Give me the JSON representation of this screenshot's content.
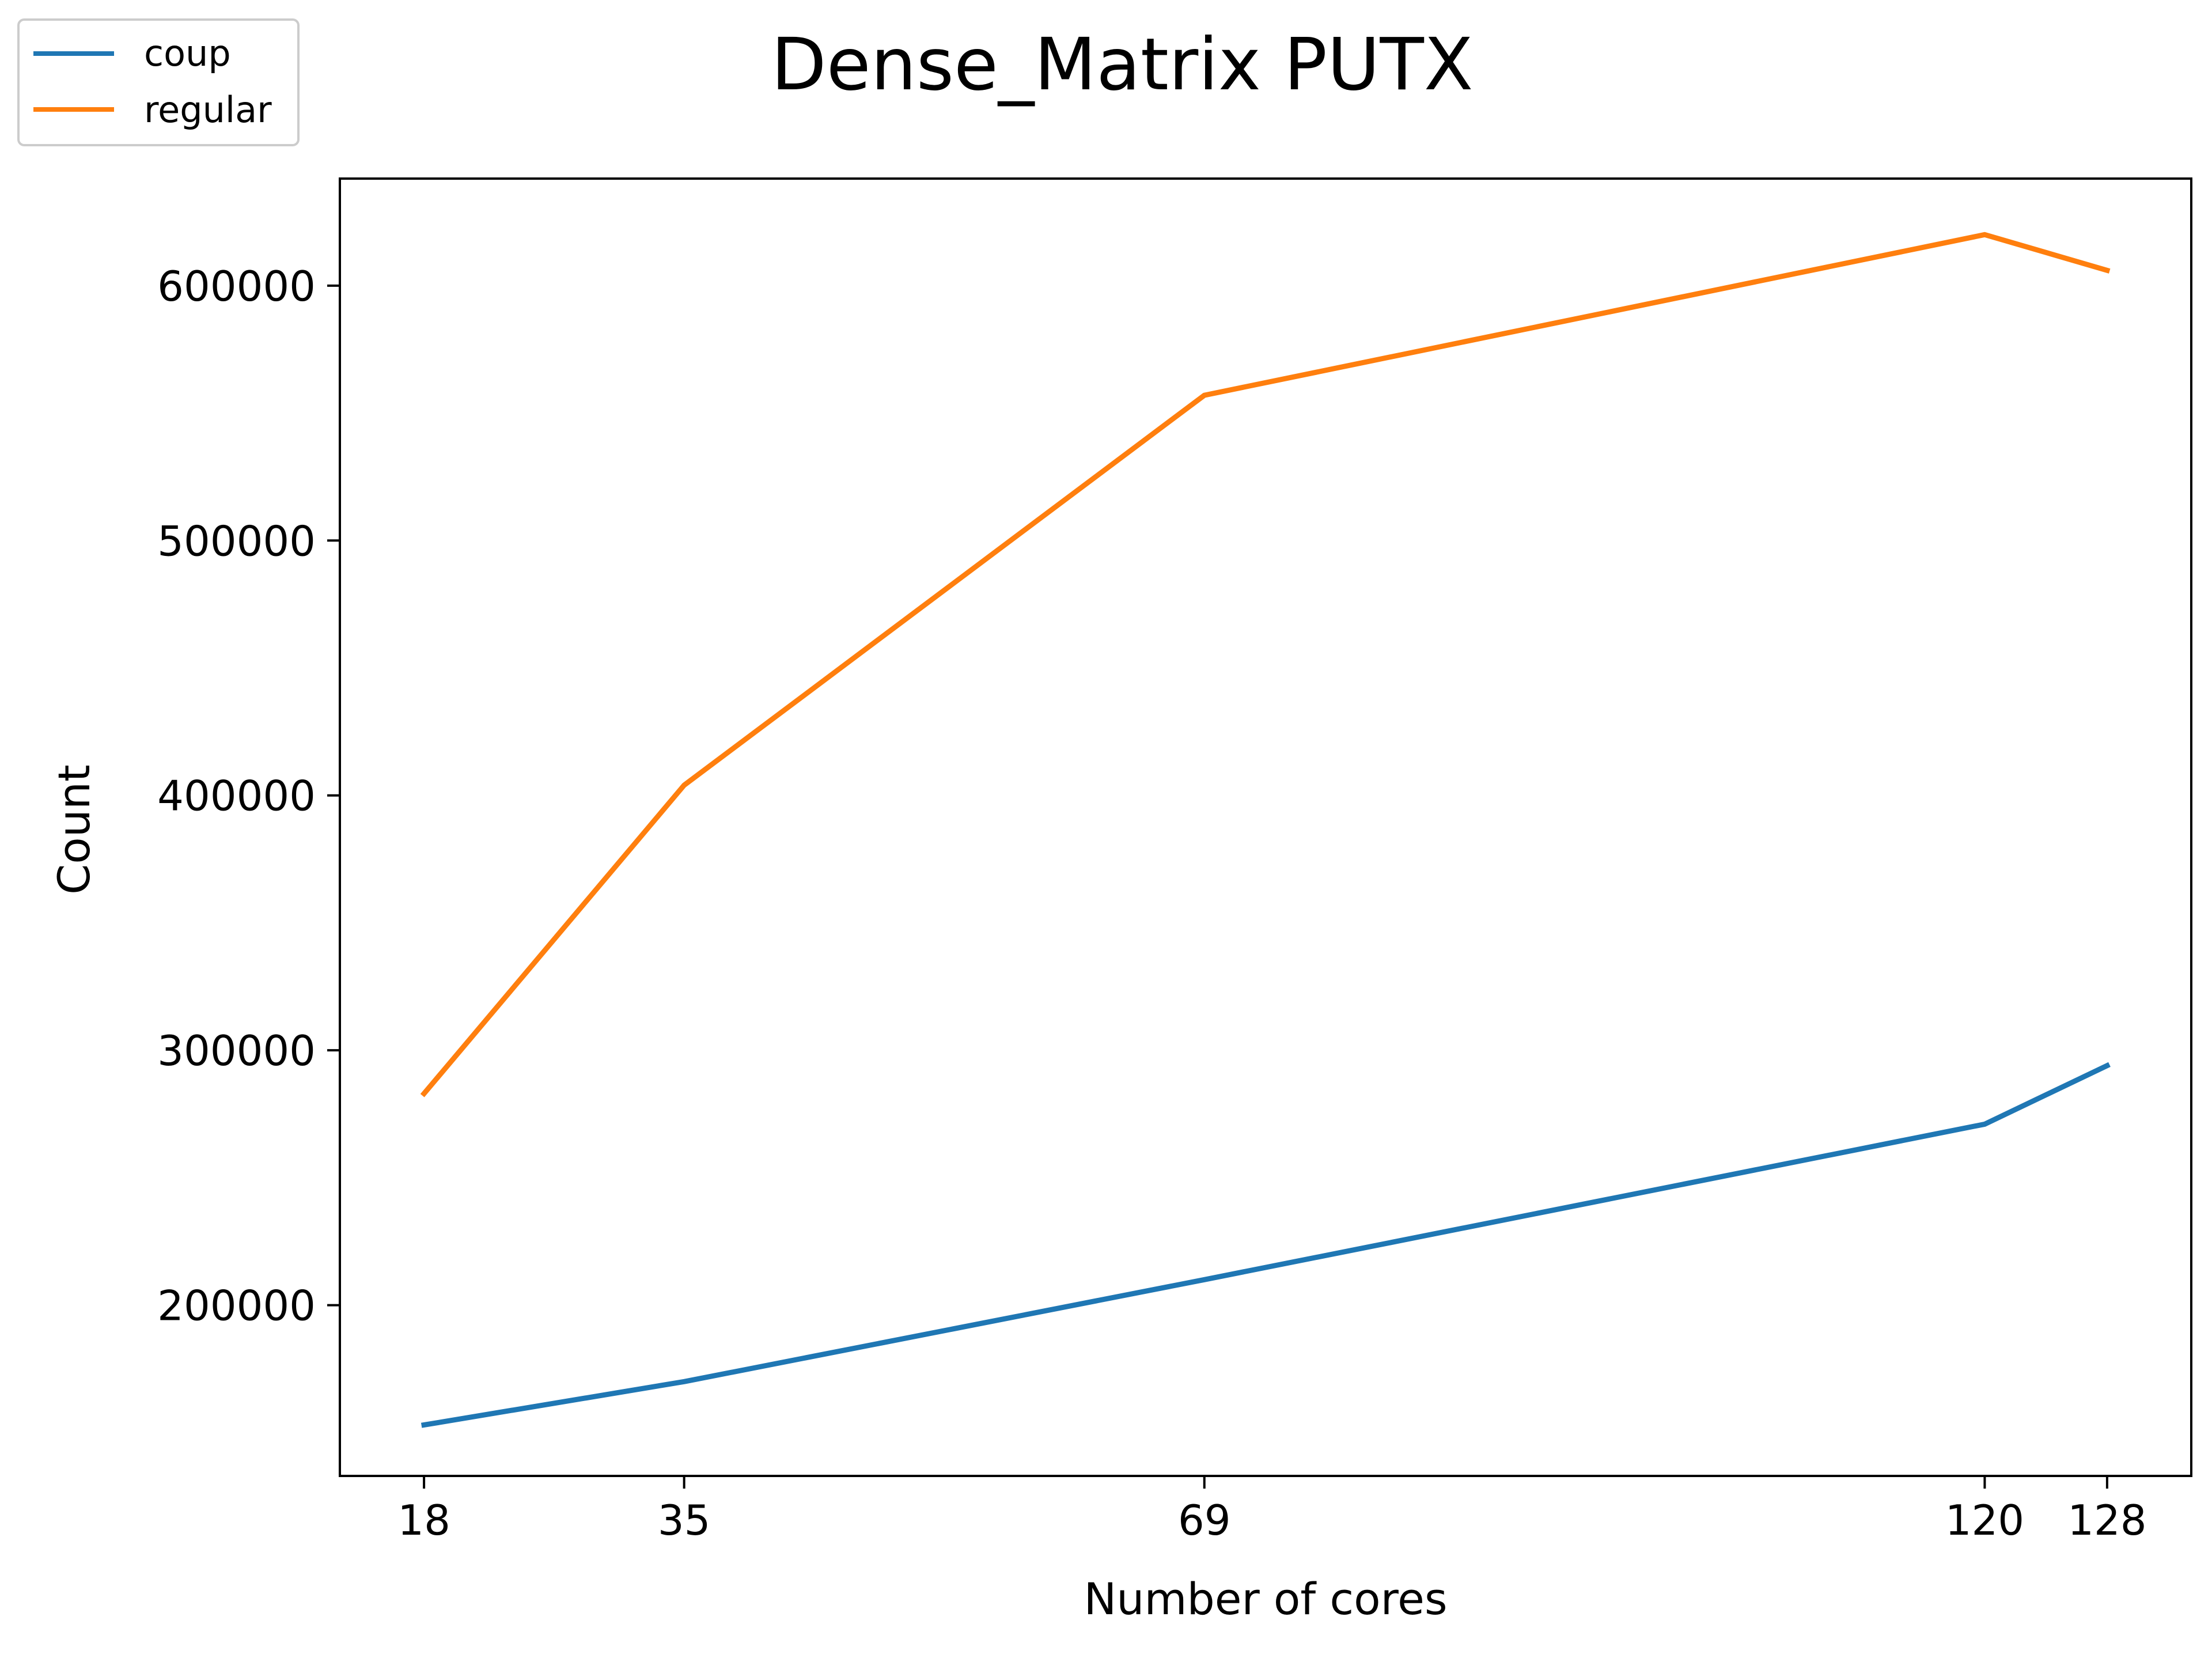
{
  "chart_data": {
    "type": "line",
    "title": "Dense_Matrix PUTX",
    "xlabel": "Number of cores",
    "ylabel": "Count",
    "x": [
      18,
      35,
      69,
      120,
      128
    ],
    "xticks": [
      "18",
      "35",
      "69",
      "120",
      "128"
    ],
    "yticks": [
      "200000",
      "300000",
      "400000",
      "500000",
      "600000"
    ],
    "ytick_values": [
      200000,
      300000,
      400000,
      500000,
      600000
    ],
    "xlim": [
      12.5,
      133.5
    ],
    "ylim": [
      133000,
      642000
    ],
    "grid": false,
    "legend_position": "top-left, outside the plot area",
    "series": [
      {
        "name": "coup",
        "color": "#1f77b4",
        "values": [
          153000,
          170000,
          210000,
          271000,
          294000
        ]
      },
      {
        "name": "regular",
        "color": "#ff7f0e",
        "values": [
          283000,
          404000,
          557000,
          620000,
          606000
        ]
      }
    ]
  }
}
